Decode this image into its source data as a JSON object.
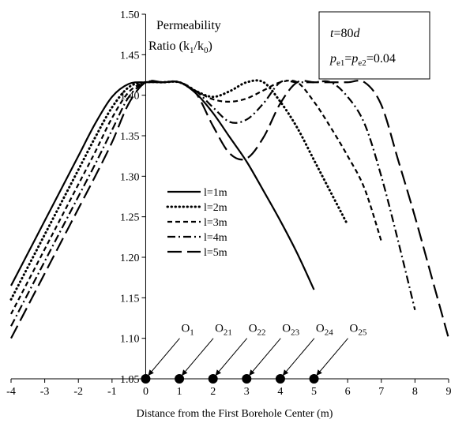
{
  "chart_data": {
    "type": "line",
    "xlabel": "Distance from the First Borehole Center (m)",
    "ylabel_lines": [
      "Permeability",
      "Ratio (k",
      "1",
      "/k",
      "0",
      ")"
    ],
    "xlim": [
      -4,
      9
    ],
    "ylim": [
      1.05,
      1.5
    ],
    "x_ticks": [
      "-4",
      "-3",
      "-2",
      "-1",
      "0",
      "1",
      "2",
      "3",
      "4",
      "5",
      "6",
      "7",
      "8",
      "9"
    ],
    "y_ticks": [
      "1.05",
      "1.10",
      "1.15",
      "1.20",
      "1.25",
      "1.30",
      "1.35",
      "1.40",
      "1.45",
      "1.50"
    ],
    "info_box": {
      "time_var": "t",
      "time_value": "=80",
      "time_unit": "d",
      "p_var": "p",
      "p_sub1": "e1",
      "p_mid": "=",
      "p_sub2": "e2",
      "p_value": "=0.04"
    },
    "boreholes": {
      "x": [
        0,
        1,
        2,
        3,
        4,
        5
      ],
      "labels": [
        {
          "main": "O",
          "sub": "1"
        },
        {
          "main": "O",
          "sub": "21"
        },
        {
          "main": "O",
          "sub": "22"
        },
        {
          "main": "O",
          "sub": "23"
        },
        {
          "main": "O",
          "sub": "24"
        },
        {
          "main": "O",
          "sub": "25"
        }
      ]
    },
    "legend_position": "center",
    "series": [
      {
        "name": "l=1m",
        "dash": "solid",
        "x": [
          -4,
          -3.5,
          -3,
          -2.5,
          -2,
          -1.5,
          -1,
          -0.5,
          0,
          0.5,
          1,
          1.5,
          2,
          2.5,
          3,
          3.5,
          4,
          4.5,
          5
        ],
        "y": [
          1.165,
          1.205,
          1.245,
          1.285,
          1.325,
          1.365,
          1.398,
          1.414,
          1.416,
          1.416,
          1.416,
          1.402,
          1.378,
          1.348,
          1.318,
          1.282,
          1.245,
          1.205,
          1.16
        ]
      },
      {
        "name": "l=2m",
        "dash": "dot",
        "x": [
          -4,
          -3.5,
          -3,
          -2.5,
          -2,
          -1.5,
          -1,
          -0.5,
          0,
          0.5,
          1,
          1.5,
          2,
          2.5,
          3,
          3.5,
          4,
          4.5,
          5,
          5.5,
          6
        ],
        "y": [
          1.148,
          1.188,
          1.228,
          1.268,
          1.308,
          1.348,
          1.385,
          1.41,
          1.416,
          1.416,
          1.416,
          1.405,
          1.398,
          1.405,
          1.416,
          1.416,
          1.392,
          1.36,
          1.32,
          1.28,
          1.24
        ]
      },
      {
        "name": "l=3m",
        "dash": "dash",
        "x": [
          -4,
          -3.5,
          -3,
          -2.5,
          -2,
          -1.5,
          -1,
          -0.5,
          0,
          0.5,
          1,
          1.5,
          2,
          2.5,
          3,
          3.5,
          4,
          4.5,
          5,
          5.5,
          6,
          6.5,
          7
        ],
        "y": [
          1.13,
          1.17,
          1.21,
          1.25,
          1.29,
          1.33,
          1.372,
          1.404,
          1.416,
          1.416,
          1.416,
          1.405,
          1.395,
          1.392,
          1.396,
          1.406,
          1.416,
          1.416,
          1.392,
          1.36,
          1.325,
          1.285,
          1.22
        ]
      },
      {
        "name": "l=4m",
        "dash": "dashdot",
        "x": [
          -4,
          -3.5,
          -3,
          -2.5,
          -2,
          -1.5,
          -1,
          -0.5,
          0,
          0.5,
          1,
          1.5,
          2,
          2.5,
          3,
          3.5,
          4,
          4.5,
          5,
          5.5,
          6,
          6.5,
          7,
          7.5,
          8
        ],
        "y": [
          1.115,
          1.155,
          1.195,
          1.235,
          1.275,
          1.315,
          1.357,
          1.398,
          1.416,
          1.416,
          1.416,
          1.405,
          1.385,
          1.367,
          1.37,
          1.39,
          1.416,
          1.416,
          1.416,
          1.416,
          1.398,
          1.365,
          1.3,
          1.22,
          1.135
        ]
      },
      {
        "name": "l=5m",
        "dash": "longdash",
        "x": [
          -4,
          -3.5,
          -3,
          -2.5,
          -2,
          -1.5,
          -1,
          -0.5,
          0,
          0.5,
          1,
          1.5,
          2,
          2.5,
          3,
          3.5,
          4,
          4.5,
          5,
          5.5,
          6,
          6.5,
          7,
          7.5,
          8,
          8.5,
          9
        ],
        "y": [
          1.1,
          1.14,
          1.18,
          1.22,
          1.26,
          1.3,
          1.342,
          1.39,
          1.416,
          1.416,
          1.416,
          1.402,
          1.362,
          1.328,
          1.322,
          1.348,
          1.39,
          1.416,
          1.416,
          1.416,
          1.416,
          1.416,
          1.388,
          1.32,
          1.25,
          1.175,
          1.1
        ]
      }
    ]
  }
}
